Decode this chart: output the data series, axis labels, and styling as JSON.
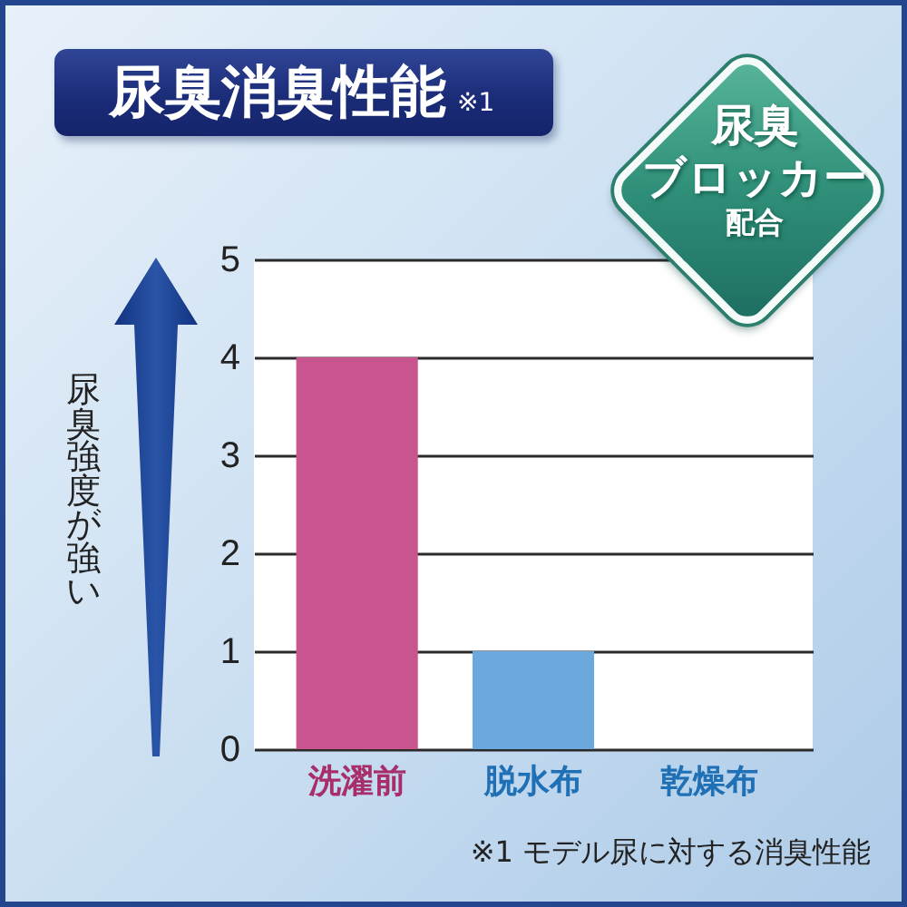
{
  "chart_data": {
    "type": "bar",
    "title": "尿臭消臭性能 ※1",
    "ylabel": "尿臭強度が強い",
    "categories": [
      "洗濯前",
      "脱水布",
      "乾燥布"
    ],
    "values": [
      4,
      1,
      0
    ],
    "colors": [
      "#c9558f",
      "#6aa8de",
      "#6aa8de"
    ],
    "ylim": [
      0,
      5
    ],
    "yticks": [
      0,
      1,
      2,
      3,
      4,
      5
    ],
    "grid": "y",
    "annotations": [
      "尿臭ブロッカー配合",
      "※1 モデル尿に対する消臭性能"
    ]
  }
}
